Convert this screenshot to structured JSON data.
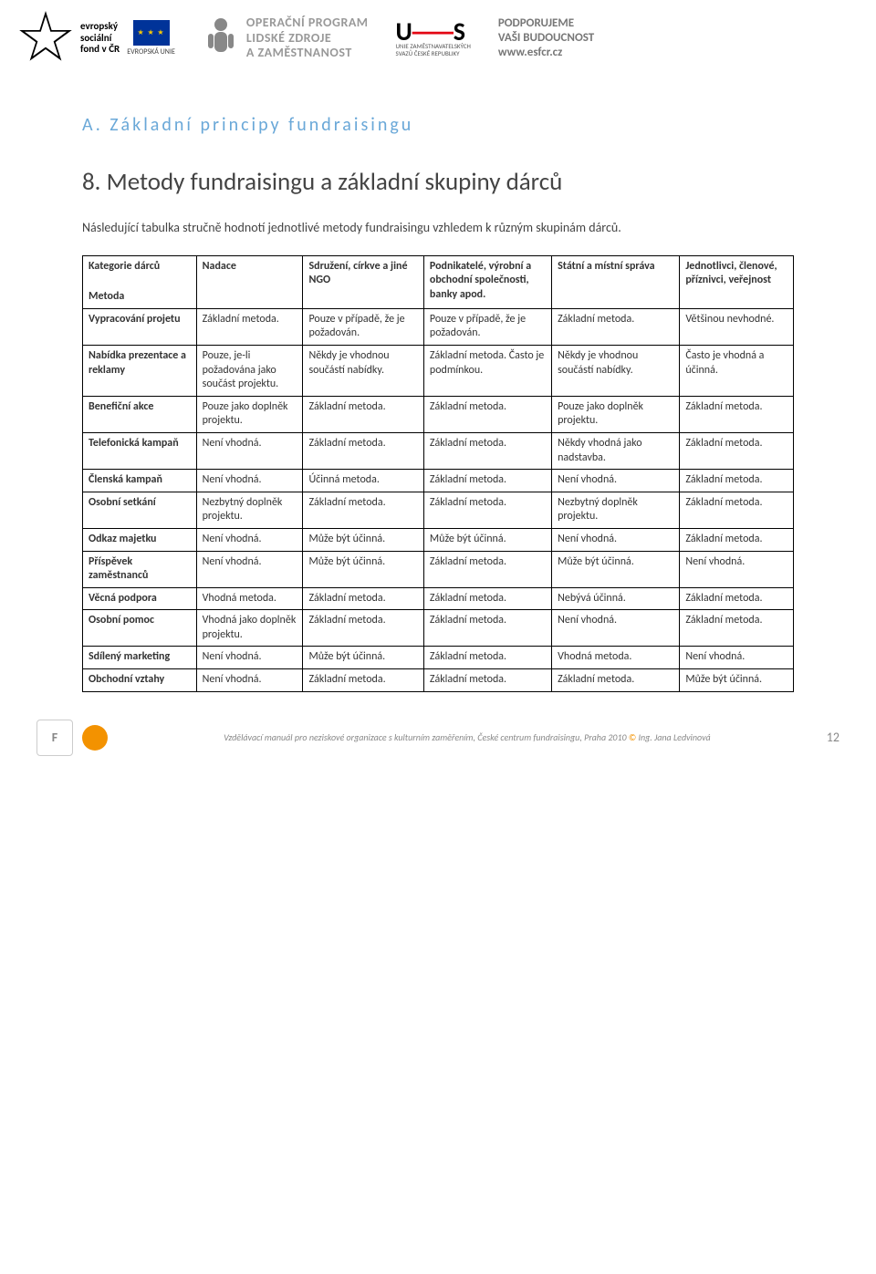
{
  "header": {
    "esf": {
      "line1": "evropský",
      "line2": "sociální",
      "line3": "fond v ČR",
      "eu": "EVROPSKÁ UNIE"
    },
    "op": {
      "line1": "OPERAČNÍ PROGRAM",
      "line2": "LIDSKÉ ZDROJE",
      "line3": "A ZAMĚSTNANOST"
    },
    "uzs": {
      "logo": "U",
      "logo2": "S",
      "sub1": "UNIE ZAMĚSTNAVATELSKÝCH",
      "sub2": "SVAZŮ ČESKÉ REPUBLIKY"
    },
    "support": {
      "line1": "PODPORUJEME",
      "line2": "VAŠI BUDOUCNOST",
      "url": "www.esfcr.cz"
    }
  },
  "section": {
    "label": "A.   Základní principy fundraisingu",
    "title": "8.   Metody fundraisingu a základní skupiny dárců",
    "intro": "Následující tabulka stručně hodnotí jednotlivé metody fundraisingu vzhledem k různým skupinám dárců."
  },
  "table": {
    "header_left_top": "Kategorie dárců",
    "header_left_bottom": "Metoda",
    "columns": [
      "Nadace",
      "Sdružení, církve a jiné NGO",
      "Podnikatelé, výrobní a obchodní společnosti, banky apod.",
      "Státní a místní správa",
      "Jednotlivci, členové, příznivci, veřejnost"
    ],
    "rows": [
      {
        "label": "Vypracování projetu",
        "cells": [
          "Základní metoda.",
          "Pouze v případě, že je požadován.",
          "Pouze v případě, že je požadován.",
          "Základní metoda.",
          "Většinou nevhodné."
        ]
      },
      {
        "label": "Nabídka prezentace a reklamy",
        "cells": [
          "Pouze, je-li požadována jako součást projektu.",
          "Někdy je vhodnou součástí nabídky.",
          "Základní metoda. Často je podmínkou.",
          "Někdy je vhodnou součástí nabídky.",
          "Často je vhodná a účinná."
        ]
      },
      {
        "label": "Benefiční akce",
        "cells": [
          "Pouze jako doplněk projektu.",
          "Základní metoda.",
          "Základní metoda.",
          "Pouze jako doplněk projektu.",
          "Základní metoda."
        ]
      },
      {
        "label": "Telefonická kampaň",
        "cells": [
          "Není vhodná.",
          "Základní metoda.",
          "Základní metoda.",
          "Někdy vhodná jako nadstavba.",
          "Základní metoda."
        ]
      },
      {
        "label": "Členská kampaň",
        "cells": [
          "Není vhodná.",
          "Účinná metoda.",
          "Základní metoda.",
          "Není vhodná.",
          "Základní metoda."
        ]
      },
      {
        "label": "Osobní setkání",
        "cells": [
          "Nezbytný doplněk projektu.",
          "Základní metoda.",
          "Základní metoda.",
          "Nezbytný doplněk projektu.",
          "Základní metoda."
        ]
      },
      {
        "label": "Odkaz majetku",
        "cells": [
          "Není vhodná.",
          "Může být účinná.",
          "Může být účinná.",
          "Není vhodná.",
          "Základní metoda."
        ]
      },
      {
        "label": "Příspěvek zaměstnanců",
        "cells": [
          "Není vhodná.",
          "Může být účinná.",
          "Základní metoda.",
          "Může být účinná.",
          "Není vhodná."
        ]
      },
      {
        "label": "Věcná podpora",
        "cells": [
          "Vhodná metoda.",
          "Základní metoda.",
          "Základní metoda.",
          "Nebývá účinná.",
          "Základní metoda."
        ]
      },
      {
        "label": "Osobní pomoc",
        "cells": [
          "Vhodná jako doplněk projektu.",
          "Základní metoda.",
          "Základní metoda.",
          "Není vhodná.",
          "Základní metoda."
        ]
      },
      {
        "label": "Sdílený marketing",
        "cells": [
          "Není vhodná.",
          "Může být účinná.",
          "Základní metoda.",
          "Vhodná metoda.",
          "Není vhodná."
        ]
      },
      {
        "label": "Obchodní vztahy",
        "cells": [
          "Není vhodná.",
          "Základní metoda.",
          "Základní metoda.",
          "Základní metoda.",
          "Může být účinná."
        ]
      }
    ]
  },
  "footer": {
    "text": "Vzdělávací manuál pro neziskové organizace s kulturním zaměřením, České centrum fundraisingu, Praha 2010",
    "author": "Ing. Jana Ledvinová",
    "page": "12"
  }
}
